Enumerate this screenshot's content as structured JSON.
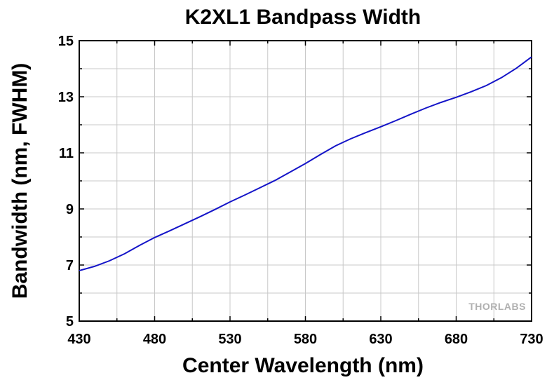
{
  "chart_data": {
    "type": "line",
    "title": "K2XL1 Bandpass Width",
    "xlabel": "Center Wavelength (nm)",
    "ylabel": "Bandwidth (nm, FWHM)",
    "xlim": [
      430,
      730
    ],
    "ylim": [
      5,
      15
    ],
    "xticks": [
      430,
      480,
      530,
      580,
      630,
      680,
      730
    ],
    "yticks": [
      5,
      7,
      9,
      11,
      13,
      15
    ],
    "grid": true,
    "series": [
      {
        "color": "#1414c8",
        "x": [
          430,
          440,
          450,
          460,
          470,
          480,
          490,
          500,
          510,
          520,
          530,
          540,
          550,
          560,
          570,
          580,
          590,
          600,
          610,
          620,
          630,
          640,
          650,
          660,
          670,
          680,
          690,
          700,
          710,
          720,
          730
        ],
        "y": [
          6.8,
          6.95,
          7.15,
          7.4,
          7.7,
          7.98,
          8.22,
          8.47,
          8.72,
          8.98,
          9.25,
          9.5,
          9.76,
          10.02,
          10.32,
          10.62,
          10.94,
          11.25,
          11.5,
          11.72,
          11.93,
          12.15,
          12.38,
          12.6,
          12.8,
          12.98,
          13.18,
          13.4,
          13.68,
          14.02,
          14.42
        ]
      }
    ],
    "watermark": "THORLABS"
  }
}
